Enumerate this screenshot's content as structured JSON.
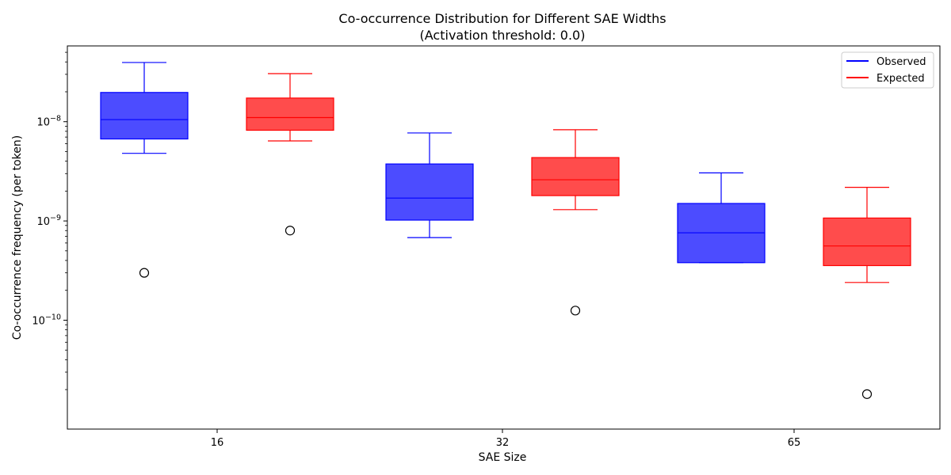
{
  "chart_data": {
    "type": "box",
    "title": "Co-occurrence Distribution for Different SAE Widths",
    "subtitle": "(Activation threshold: 0.0)",
    "xlabel": "SAE Size",
    "ylabel": "Co-occurrence frequency (per token)",
    "yscale": "log",
    "ylim": [
      8e-12,
      5.8e-08
    ],
    "categories": [
      "16",
      "32",
      "65"
    ],
    "y_tick_labels": [
      "10^-8",
      "10^-9",
      "10^-10"
    ],
    "legend": {
      "position": "top-right",
      "entries": [
        {
          "name": "Observed",
          "color": "#0000ff"
        },
        {
          "name": "Expected",
          "color": "#ff0000"
        }
      ]
    },
    "series": [
      {
        "name": "Observed",
        "color": "#0000ff",
        "boxes": [
          {
            "category": "16",
            "whisker_low": 4.8e-09,
            "q1": 6.7e-09,
            "median": 1.05e-08,
            "q3": 1.97e-08,
            "whisker_high": 3.95e-08,
            "outliers": [
              3e-10
            ]
          },
          {
            "category": "32",
            "whisker_low": 6.8e-10,
            "q1": 1.02e-09,
            "median": 1.7e-09,
            "q3": 3.75e-09,
            "whisker_high": 7.7e-09,
            "outliers": []
          },
          {
            "category": "65",
            "whisker_low": 3.8e-10,
            "q1": 3.8e-10,
            "median": 7.6e-10,
            "q3": 1.5e-09,
            "whisker_high": 3.05e-09,
            "outliers": []
          }
        ]
      },
      {
        "name": "Expected",
        "color": "#ff0000",
        "boxes": [
          {
            "category": "16",
            "whisker_low": 6.4e-09,
            "q1": 8.2e-09,
            "median": 1.1e-08,
            "q3": 1.73e-08,
            "whisker_high": 3.05e-08,
            "outliers": [
              8e-10
            ]
          },
          {
            "category": "32",
            "whisker_low": 1.3e-09,
            "q1": 1.8e-09,
            "median": 2.6e-09,
            "q3": 4.35e-09,
            "whisker_high": 8.3e-09,
            "outliers": [
              1.25e-10
            ]
          },
          {
            "category": "65",
            "whisker_low": 2.4e-10,
            "q1": 3.55e-10,
            "median": 5.6e-10,
            "q3": 1.07e-09,
            "whisker_high": 2.18e-09,
            "outliers": [
              1.8e-11
            ]
          }
        ]
      }
    ]
  }
}
